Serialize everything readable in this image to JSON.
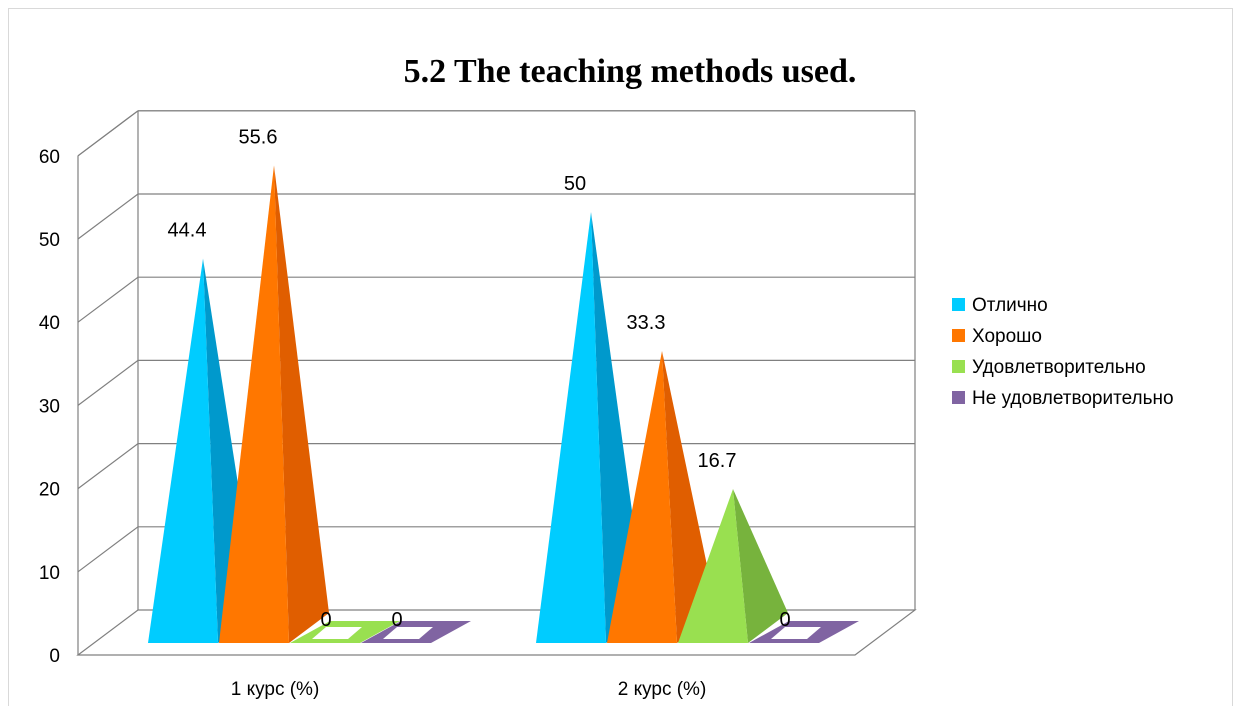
{
  "chart_data": {
    "type": "bar",
    "style": "3d-pyramid",
    "title": "5.2 The teaching methods used.",
    "categories": [
      "1 курс (%)",
      "2 курс (%)"
    ],
    "series": [
      {
        "name": "Отлично",
        "values": [
          44.4,
          50
        ],
        "labels": [
          "44.4",
          "50"
        ],
        "color": "#00ccff",
        "side_color": "#0099cc"
      },
      {
        "name": "Хорошо",
        "values": [
          55.6,
          33.3
        ],
        "labels": [
          "55.6",
          "33.3"
        ],
        "color": "#ff7700",
        "side_color": "#e05e00"
      },
      {
        "name": "Удовлетворительно",
        "values": [
          0,
          16.7
        ],
        "labels": [
          "0",
          "16.7"
        ],
        "color": "#99e050",
        "side_color": "#77b33d"
      },
      {
        "name": "Не удовлетворительно",
        "values": [
          0,
          0
        ],
        "labels": [
          "0",
          "0"
        ],
        "color": "#8064a2",
        "side_color": "#604a7b"
      }
    ],
    "yticks": [
      "0",
      "10",
      "20",
      "30",
      "40",
      "50",
      "60"
    ],
    "ylim": [
      0,
      60
    ],
    "grid": true,
    "legend": "right"
  }
}
